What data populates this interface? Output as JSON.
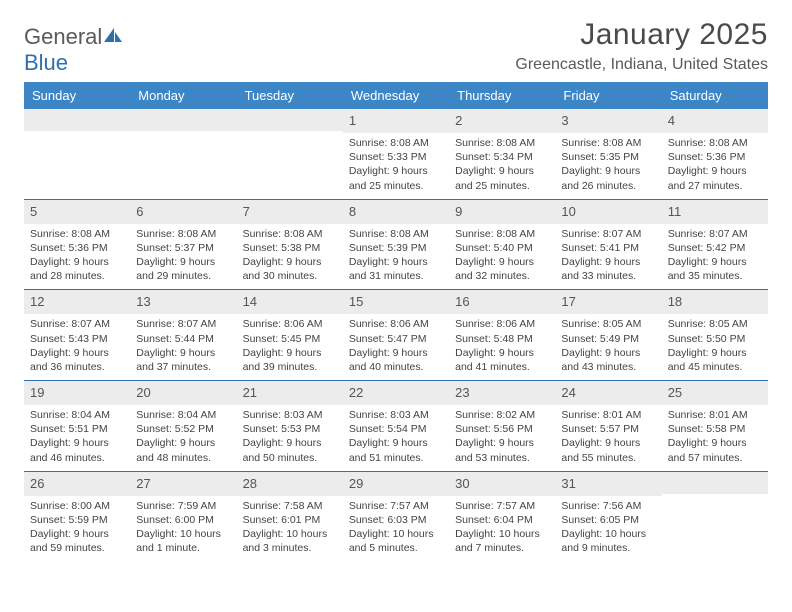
{
  "brand": {
    "word1": "General",
    "word2": "Blue"
  },
  "title": "January 2025",
  "location": "Greencastle, Indiana, United States",
  "colors": {
    "header_bg": "#3d86c6",
    "header_text": "#ffffff",
    "week_divider": "#2f6fb0",
    "date_bg": "#ececec",
    "text": "#444444",
    "title_color": "#4a4a4a"
  },
  "day_headers": [
    "Sunday",
    "Monday",
    "Tuesday",
    "Wednesday",
    "Thursday",
    "Friday",
    "Saturday"
  ],
  "weeks": [
    [
      null,
      null,
      null,
      {
        "date": "1",
        "sunrise": "8:08 AM",
        "sunset": "5:33 PM",
        "daylight": "9 hours and 25 minutes."
      },
      {
        "date": "2",
        "sunrise": "8:08 AM",
        "sunset": "5:34 PM",
        "daylight": "9 hours and 25 minutes."
      },
      {
        "date": "3",
        "sunrise": "8:08 AM",
        "sunset": "5:35 PM",
        "daylight": "9 hours and 26 minutes."
      },
      {
        "date": "4",
        "sunrise": "8:08 AM",
        "sunset": "5:36 PM",
        "daylight": "9 hours and 27 minutes."
      }
    ],
    [
      {
        "date": "5",
        "sunrise": "8:08 AM",
        "sunset": "5:36 PM",
        "daylight": "9 hours and 28 minutes."
      },
      {
        "date": "6",
        "sunrise": "8:08 AM",
        "sunset": "5:37 PM",
        "daylight": "9 hours and 29 minutes."
      },
      {
        "date": "7",
        "sunrise": "8:08 AM",
        "sunset": "5:38 PM",
        "daylight": "9 hours and 30 minutes."
      },
      {
        "date": "8",
        "sunrise": "8:08 AM",
        "sunset": "5:39 PM",
        "daylight": "9 hours and 31 minutes."
      },
      {
        "date": "9",
        "sunrise": "8:08 AM",
        "sunset": "5:40 PM",
        "daylight": "9 hours and 32 minutes."
      },
      {
        "date": "10",
        "sunrise": "8:07 AM",
        "sunset": "5:41 PM",
        "daylight": "9 hours and 33 minutes."
      },
      {
        "date": "11",
        "sunrise": "8:07 AM",
        "sunset": "5:42 PM",
        "daylight": "9 hours and 35 minutes."
      }
    ],
    [
      {
        "date": "12",
        "sunrise": "8:07 AM",
        "sunset": "5:43 PM",
        "daylight": "9 hours and 36 minutes."
      },
      {
        "date": "13",
        "sunrise": "8:07 AM",
        "sunset": "5:44 PM",
        "daylight": "9 hours and 37 minutes."
      },
      {
        "date": "14",
        "sunrise": "8:06 AM",
        "sunset": "5:45 PM",
        "daylight": "9 hours and 39 minutes."
      },
      {
        "date": "15",
        "sunrise": "8:06 AM",
        "sunset": "5:47 PM",
        "daylight": "9 hours and 40 minutes."
      },
      {
        "date": "16",
        "sunrise": "8:06 AM",
        "sunset": "5:48 PM",
        "daylight": "9 hours and 41 minutes."
      },
      {
        "date": "17",
        "sunrise": "8:05 AM",
        "sunset": "5:49 PM",
        "daylight": "9 hours and 43 minutes."
      },
      {
        "date": "18",
        "sunrise": "8:05 AM",
        "sunset": "5:50 PM",
        "daylight": "9 hours and 45 minutes."
      }
    ],
    [
      {
        "date": "19",
        "sunrise": "8:04 AM",
        "sunset": "5:51 PM",
        "daylight": "9 hours and 46 minutes."
      },
      {
        "date": "20",
        "sunrise": "8:04 AM",
        "sunset": "5:52 PM",
        "daylight": "9 hours and 48 minutes."
      },
      {
        "date": "21",
        "sunrise": "8:03 AM",
        "sunset": "5:53 PM",
        "daylight": "9 hours and 50 minutes."
      },
      {
        "date": "22",
        "sunrise": "8:03 AM",
        "sunset": "5:54 PM",
        "daylight": "9 hours and 51 minutes."
      },
      {
        "date": "23",
        "sunrise": "8:02 AM",
        "sunset": "5:56 PM",
        "daylight": "9 hours and 53 minutes."
      },
      {
        "date": "24",
        "sunrise": "8:01 AM",
        "sunset": "5:57 PM",
        "daylight": "9 hours and 55 minutes."
      },
      {
        "date": "25",
        "sunrise": "8:01 AM",
        "sunset": "5:58 PM",
        "daylight": "9 hours and 57 minutes."
      }
    ],
    [
      {
        "date": "26",
        "sunrise": "8:00 AM",
        "sunset": "5:59 PM",
        "daylight": "9 hours and 59 minutes."
      },
      {
        "date": "27",
        "sunrise": "7:59 AM",
        "sunset": "6:00 PM",
        "daylight": "10 hours and 1 minute."
      },
      {
        "date": "28",
        "sunrise": "7:58 AM",
        "sunset": "6:01 PM",
        "daylight": "10 hours and 3 minutes."
      },
      {
        "date": "29",
        "sunrise": "7:57 AM",
        "sunset": "6:03 PM",
        "daylight": "10 hours and 5 minutes."
      },
      {
        "date": "30",
        "sunrise": "7:57 AM",
        "sunset": "6:04 PM",
        "daylight": "10 hours and 7 minutes."
      },
      {
        "date": "31",
        "sunrise": "7:56 AM",
        "sunset": "6:05 PM",
        "daylight": "10 hours and 9 minutes."
      },
      null
    ]
  ],
  "labels": {
    "sunrise": "Sunrise:",
    "sunset": "Sunset:",
    "daylight": "Daylight:"
  }
}
